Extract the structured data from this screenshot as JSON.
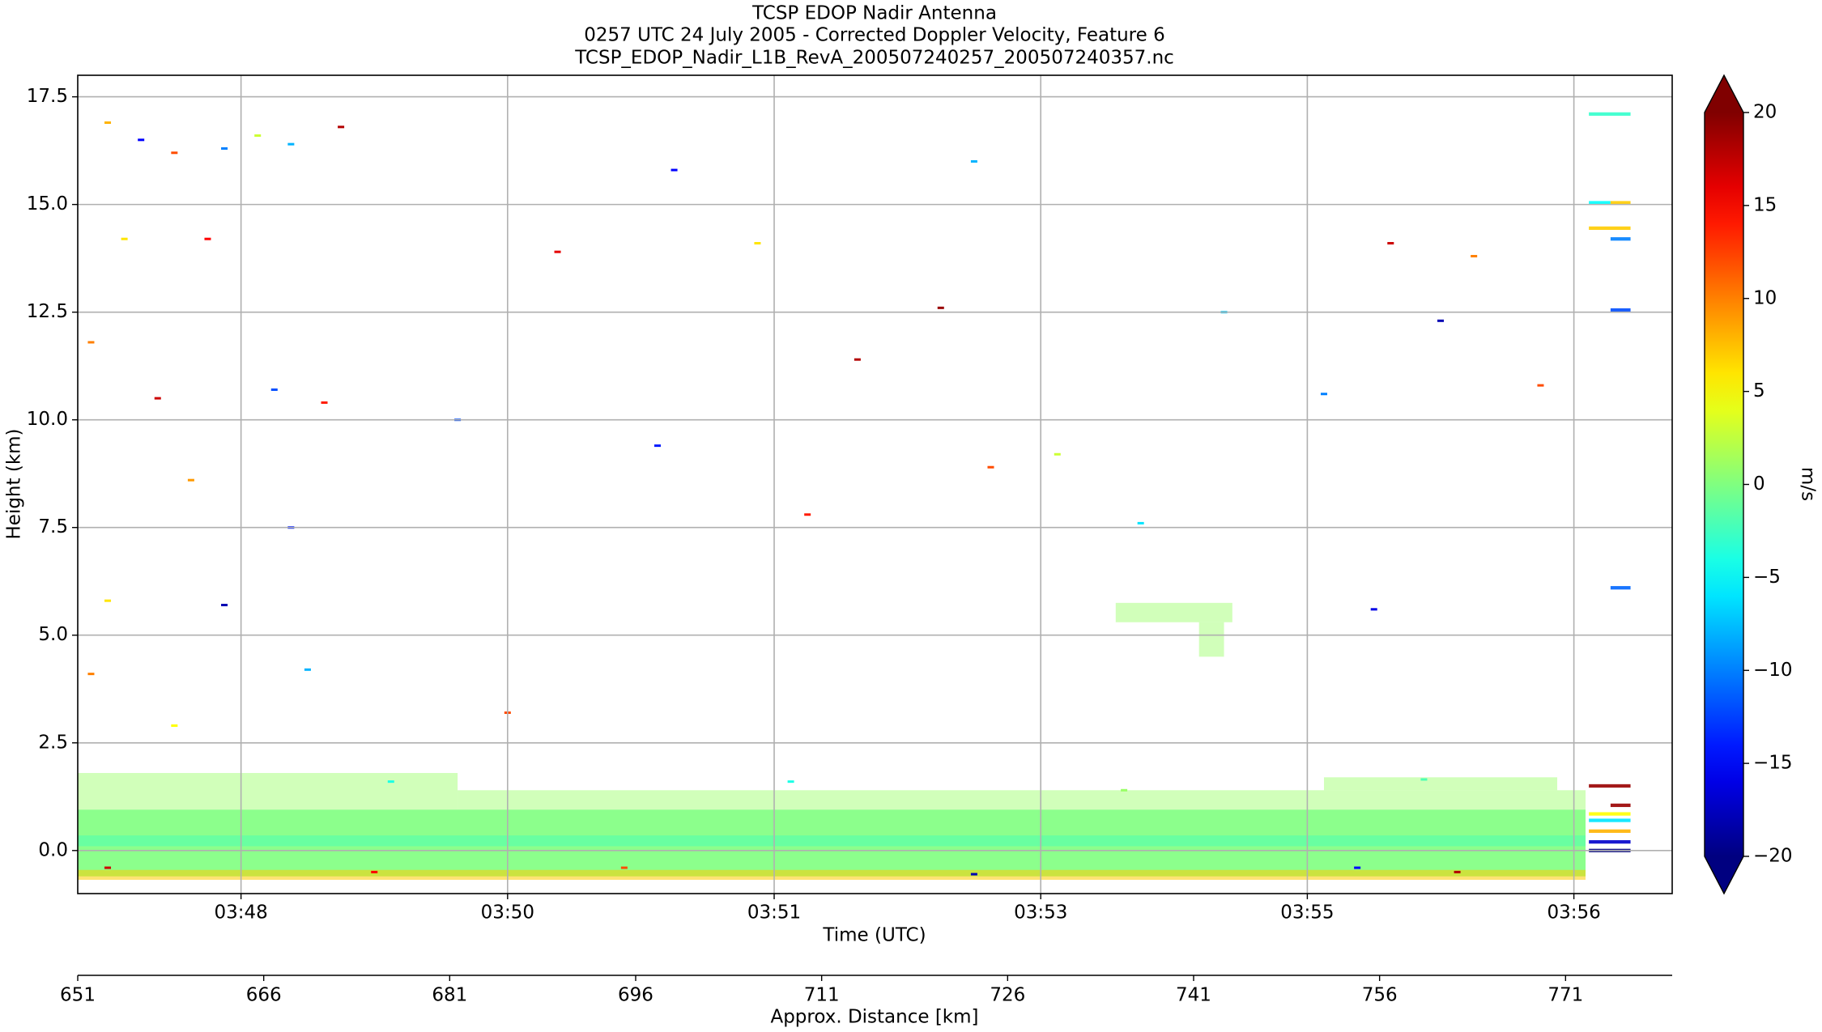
{
  "chart_data": {
    "type": "heatmap",
    "title": [
      "TCSP EDOP Nadir Antenna",
      "0257 UTC 24 July 2005 - Corrected Doppler Velocity, Feature 6",
      "TCSP_EDOP_Nadir_L1B_RevA_200507240257_200507240357.nc"
    ],
    "xlabel": "Time (UTC)",
    "ylabel": "Height (km)",
    "x2label": "Approx. Distance [km]",
    "colorbar_label": "m/s",
    "colormap": "jet",
    "clim": [
      -20,
      20
    ],
    "cticks": [
      {
        "value": -20,
        "label": "−20"
      },
      {
        "value": -15,
        "label": "−15"
      },
      {
        "value": -10,
        "label": "−10"
      },
      {
        "value": -5,
        "label": "−5"
      },
      0,
      5,
      10,
      15,
      20
    ],
    "xlim": [
      47.72,
      57.29
    ],
    "xticks": [
      {
        "value": 48.7,
        "label": "03:48"
      },
      {
        "value": 50.3,
        "label": "03:50"
      },
      {
        "value": 51.9,
        "label": "03:51"
      },
      {
        "value": 53.5,
        "label": "03:53"
      },
      {
        "value": 55.1,
        "label": "03:55"
      },
      {
        "value": 56.7,
        "label": "03:56"
      }
    ],
    "x2lim": [
      651,
      779.6
    ],
    "x2ticks": [
      651,
      666,
      681,
      696,
      711,
      726,
      741,
      756,
      771
    ],
    "ylim": [
      -1,
      18
    ],
    "yticks": [
      {
        "value": 0,
        "label": "0.0"
      },
      2.5,
      {
        "value": 5,
        "label": "5.0"
      },
      7.5,
      {
        "value": 10,
        "label": "10.0"
      },
      12.5,
      {
        "value": 15,
        "label": "15.0"
      },
      17.5
    ],
    "grid": true,
    "regions": [
      {
        "x": [
          47.72,
          56.77
        ],
        "y": [
          -0.6,
          0.95
        ],
        "value": 0
      },
      {
        "x": [
          47.72,
          56.77
        ],
        "y": [
          0.1,
          0.35
        ],
        "value": -2
      },
      {
        "x": [
          47.72,
          56.77
        ],
        "y": [
          -0.68,
          -0.45
        ],
        "value": 7
      },
      {
        "x": [
          47.72,
          50.0
        ],
        "y": [
          0.95,
          1.8
        ],
        "value": 1
      },
      {
        "x": [
          50.0,
          56.77
        ],
        "y": [
          0.95,
          1.4
        ],
        "value": 1
      },
      {
        "x": [
          55.2,
          56.6
        ],
        "y": [
          1.4,
          1.7
        ],
        "value": 1
      },
      {
        "x": [
          53.95,
          54.65
        ],
        "y": [
          5.3,
          5.75
        ],
        "value": 1
      },
      {
        "x": [
          54.45,
          54.6
        ],
        "y": [
          4.5,
          5.3
        ],
        "value": 1
      },
      {
        "x": [
          56.79,
          57.04
        ],
        "y": [
          17.06,
          17.14
        ],
        "value": -3
      },
      {
        "x": [
          56.79,
          56.92
        ],
        "y": [
          15.0,
          15.08
        ],
        "value": -5
      },
      {
        "x": [
          56.92,
          57.04
        ],
        "y": [
          15.0,
          15.08
        ],
        "value": 7
      },
      {
        "x": [
          56.79,
          57.04
        ],
        "y": [
          14.41,
          14.49
        ],
        "value": 7
      },
      {
        "x": [
          56.92,
          57.04
        ],
        "y": [
          14.16,
          14.24
        ],
        "value": -10
      },
      {
        "x": [
          56.92,
          57.04
        ],
        "y": [
          12.51,
          12.59
        ],
        "value": -12
      },
      {
        "x": [
          56.92,
          57.04
        ],
        "y": [
          6.06,
          6.14
        ],
        "value": -11
      },
      {
        "x": [
          56.79,
          57.04
        ],
        "y": [
          1.46,
          1.54
        ],
        "value": 19
      },
      {
        "x": [
          56.92,
          57.04
        ],
        "y": [
          1.01,
          1.09
        ],
        "value": 19
      },
      {
        "x": [
          56.79,
          57.04
        ],
        "y": [
          0.81,
          0.89
        ],
        "value": 5
      },
      {
        "x": [
          56.79,
          57.04
        ],
        "y": [
          0.66,
          0.74
        ],
        "value": -6
      },
      {
        "x": [
          56.79,
          57.04
        ],
        "y": [
          0.41,
          0.49
        ],
        "value": 8
      },
      {
        "x": [
          56.79,
          57.04
        ],
        "y": [
          0.16,
          0.24
        ],
        "value": -17
      },
      {
        "x": [
          56.79,
          57.04
        ],
        "y": [
          -0.04,
          0.04
        ],
        "value": -20
      }
    ],
    "points": {
      "x": [
        47.9,
        48.1,
        48.3,
        48.6,
        48.8,
        49.0,
        49.3,
        48.0,
        48.5,
        47.8,
        48.2,
        48.9,
        49.2,
        48.4,
        49.0,
        47.9,
        48.6,
        49.1,
        47.8,
        48.3,
        50.6,
        51.3,
        50.0,
        51.2,
        51.8,
        52.4,
        52.9,
        53.2,
        53.6,
        54.1,
        55.2,
        55.5,
        55.9,
        56.1,
        56.5,
        52.1,
        50.3,
        54.6,
        53.1,
        55.6,
        49.6,
        52.0,
        54.0,
        55.8,
        56.0,
        49.5,
        51.0,
        53.1,
        55.4,
        47.9
      ],
      "y": [
        16.9,
        16.5,
        16.2,
        16.3,
        16.6,
        16.4,
        16.8,
        14.2,
        14.2,
        11.8,
        10.5,
        10.7,
        10.4,
        8.6,
        7.5,
        5.8,
        5.7,
        4.2,
        4.1,
        2.9,
        13.9,
        15.8,
        10.0,
        9.4,
        14.1,
        11.4,
        12.6,
        8.9,
        9.2,
        7.6,
        10.6,
        5.6,
        12.3,
        13.8,
        10.8,
        7.8,
        3.2,
        12.5,
        16.0,
        14.1,
        1.6,
        1.6,
        1.4,
        1.65,
        -0.5,
        -0.5,
        -0.4,
        -0.55,
        -0.4,
        -0.4
      ],
      "values": [
        8,
        -15,
        12,
        -10,
        3,
        -8,
        18,
        6,
        15,
        10,
        17,
        -12,
        14,
        9,
        -14,
        6,
        -18,
        -8,
        10,
        5,
        16,
        -15,
        -12,
        -14,
        6,
        18,
        19,
        12,
        3,
        -6,
        -10,
        -16,
        -18,
        10,
        12,
        14,
        12,
        -7,
        -8,
        17,
        -4,
        -4,
        1,
        -2,
        18,
        15,
        12,
        -18,
        -15,
        17
      ]
    }
  }
}
